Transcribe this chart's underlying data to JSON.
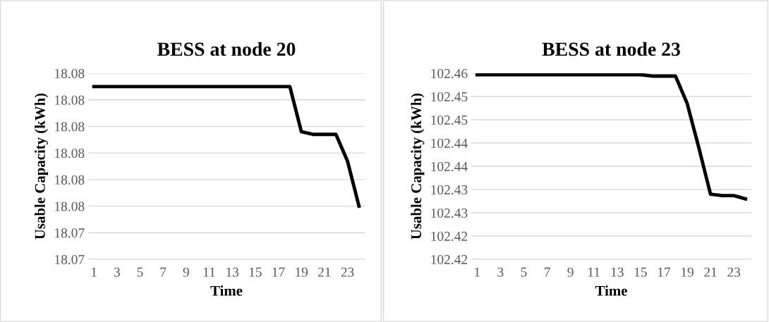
{
  "chart_data": [
    {
      "type": "line",
      "title": "BESS at node 20",
      "xlabel": "Time",
      "ylabel": "Usable Capacity (kWh)",
      "categories": [
        "1",
        null,
        "3",
        null,
        "5",
        null,
        "7",
        null,
        "9",
        null,
        "11",
        null,
        "13",
        null,
        "15",
        null,
        "17",
        null,
        "19",
        null,
        "21",
        null,
        "23",
        null
      ],
      "series": [
        {
          "color": "#000000",
          "values": [
            18.0795,
            18.0795,
            18.0795,
            18.0795,
            18.0795,
            18.0795,
            18.0795,
            18.0795,
            18.0795,
            18.0795,
            18.0795,
            18.0795,
            18.0795,
            18.0795,
            18.0795,
            18.0795,
            18.0795,
            18.0795,
            18.0778,
            18.0777,
            18.0777,
            18.0777,
            18.0767,
            18.075
          ]
        }
      ],
      "ylim": [
        18.073,
        18.08
      ],
      "yticks": [
        {
          "value": 18.073,
          "label": "18.07"
        },
        {
          "value": 18.074,
          "label": "18.07"
        },
        {
          "value": 18.075,
          "label": "18.08"
        },
        {
          "value": 18.076,
          "label": "18.08"
        },
        {
          "value": 18.077,
          "label": "18.08"
        },
        {
          "value": 18.078,
          "label": "18.08"
        },
        {
          "value": 18.079,
          "label": "18.08"
        },
        {
          "value": 18.08,
          "label": "18.08"
        }
      ],
      "grid": "y",
      "legend": false
    },
    {
      "type": "line",
      "title": "BESS at node 23",
      "xlabel": "Time",
      "ylabel": "Usable Capacity (kWh)",
      "categories": [
        "1",
        null,
        "3",
        null,
        "5",
        null,
        "7",
        null,
        "9",
        null,
        "11",
        null,
        "13",
        null,
        "15",
        null,
        "17",
        null,
        "19",
        null,
        "21",
        null,
        "23",
        null
      ],
      "series": [
        {
          "color": "#000000",
          "values": [
            102.4547,
            102.4547,
            102.4547,
            102.4547,
            102.4547,
            102.4547,
            102.4547,
            102.4547,
            102.4547,
            102.4547,
            102.4547,
            102.4547,
            102.4547,
            102.4547,
            102.4547,
            102.4544,
            102.4544,
            102.4544,
            102.4485,
            102.439,
            102.429,
            102.4287,
            102.4287,
            102.428
          ]
        }
      ],
      "ylim": [
        102.415,
        102.455
      ],
      "yticks": [
        {
          "value": 102.415,
          "label": "102.42"
        },
        {
          "value": 102.42,
          "label": "102.42"
        },
        {
          "value": 102.425,
          "label": "102.43"
        },
        {
          "value": 102.43,
          "label": "102.43"
        },
        {
          "value": 102.435,
          "label": "102.44"
        },
        {
          "value": 102.44,
          "label": "102.44"
        },
        {
          "value": 102.445,
          "label": "102.45"
        },
        {
          "value": 102.45,
          "label": "102.45"
        },
        {
          "value": 102.455,
          "label": "102.46"
        }
      ],
      "grid": "y",
      "legend": false
    }
  ]
}
